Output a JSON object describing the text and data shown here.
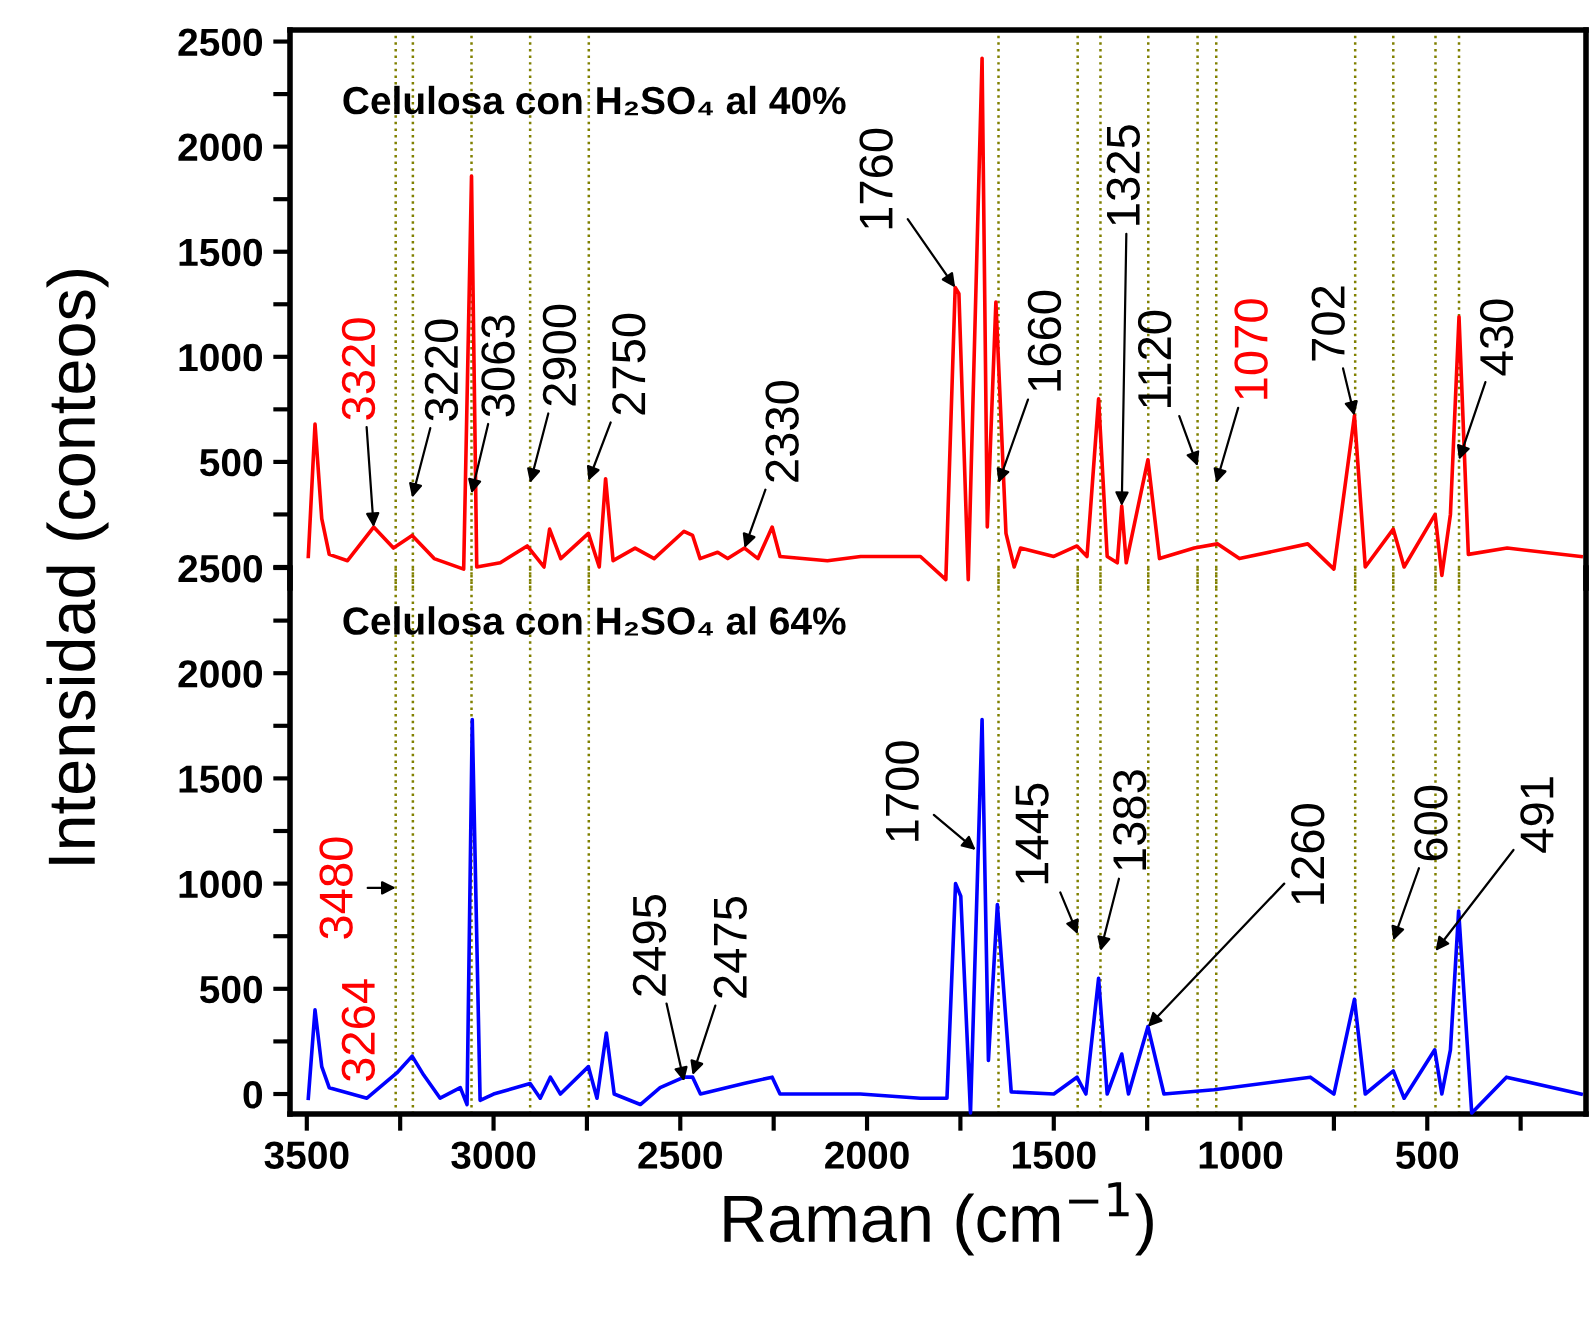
{
  "chart_data": [
    {
      "type": "line",
      "xlim": [
        3545,
        75
      ],
      "ylim": [
        -100,
        2555
      ],
      "tick_labels": "y",
      "yticks": [
        {
          "value": 0,
          "label": null
        },
        {
          "value": 250,
          "label": null
        },
        500,
        {
          "value": 750,
          "label": null
        },
        1000,
        {
          "value": 1250,
          "label": null
        },
        1500,
        {
          "value": 1750,
          "label": null
        },
        2000,
        {
          "value": 2250,
          "label": null
        },
        2500
      ],
      "grid": false,
      "legend": false,
      "marker": "none",
      "line_style": "solid",
      "series": [
        {
          "color": "#ff0000",
          "x": [
            3496,
            3478,
            3460,
            3440,
            3391,
            3321,
            3268,
            3218,
            3159,
            3080,
            3059,
            3045,
            2982,
            2910,
            2865,
            2850,
            2820,
            2746,
            2717,
            2700,
            2680,
            2621,
            2570,
            2490,
            2467,
            2447,
            2400,
            2373,
            2328,
            2292,
            2254,
            2233,
            2106,
            2017,
            1857,
            1789,
            1764,
            1754,
            1729,
            1692,
            1678,
            1655,
            1628,
            1606,
            1589,
            1500,
            1438,
            1411,
            1380,
            1357,
            1330,
            1318,
            1306,
            1248,
            1217,
            1124,
            1062,
            1003,
            820,
            750,
            695,
            666,
            591,
            562,
            479,
            461,
            438,
            415,
            390,
            286,
            88
          ],
          "values": [
            50,
            680,
            230,
            60,
            30,
            190,
            90,
            150,
            40,
            -10,
            1860,
            0,
            20,
            100,
            0,
            180,
            40,
            160,
            0,
            420,
            30,
            90,
            40,
            170,
            150,
            40,
            70,
            40,
            90,
            40,
            190,
            50,
            30,
            50,
            50,
            -60,
            1330,
            1300,
            -60,
            2420,
            190,
            1260,
            160,
            0,
            90,
            50,
            100,
            50,
            800,
            50,
            20,
            290,
            20,
            510,
            40,
            90,
            110,
            40,
            110,
            -10,
            720,
            0,
            180,
            0,
            250,
            -40,
            250,
            1190,
            60,
            90,
            50
          ]
        }
      ],
      "ref_lines": [
        {
          "axis": "x",
          "value": 3262,
          "color": "#808000",
          "line_style": "dotted"
        },
        {
          "axis": "x",
          "value": 3216,
          "color": "#808000",
          "line_style": "dotted"
        },
        {
          "axis": "x",
          "value": 3059,
          "color": "#808000",
          "line_style": "dotted"
        },
        {
          "axis": "x",
          "value": 2902,
          "color": "#808000",
          "line_style": "dotted"
        },
        {
          "axis": "x",
          "value": 2745,
          "color": "#808000",
          "line_style": "dotted"
        },
        {
          "axis": "x",
          "value": 1648,
          "color": "#808000",
          "line_style": "dotted"
        },
        {
          "axis": "x",
          "value": 1436,
          "color": "#808000",
          "line_style": "dotted"
        },
        {
          "axis": "x",
          "value": 1375,
          "color": "#808000",
          "line_style": "dotted"
        },
        {
          "axis": "x",
          "value": 1247,
          "color": "#808000",
          "line_style": "dotted"
        },
        {
          "axis": "x",
          "value": 1115,
          "color": "#808000",
          "line_style": "dotted"
        },
        {
          "axis": "x",
          "value": 1065,
          "color": "#808000",
          "line_style": "dotted"
        },
        {
          "axis": "x",
          "value": 693,
          "color": "#808000",
          "line_style": "dotted"
        },
        {
          "axis": "x",
          "value": 591,
          "color": "#808000",
          "line_style": "dotted"
        },
        {
          "axis": "x",
          "value": 478,
          "color": "#808000",
          "line_style": "dotted"
        },
        {
          "axis": "x",
          "value": 415,
          "color": "#808000",
          "line_style": "dotted"
        }
      ],
      "annotations": [
        "Celulosa con H₂SO₄ al 40%",
        {
          "text": "3320",
          "x": 3321,
          "y": 190
        },
        {
          "text": "3220",
          "x": 3218,
          "y": 330
        },
        {
          "text": "3063",
          "x": 3059,
          "y": 350
        },
        {
          "text": "2900",
          "x": 2902,
          "y": 400
        },
        {
          "text": "2750",
          "x": 2746,
          "y": 410
        },
        {
          "text": "2330",
          "x": 2328,
          "y": 90
        },
        {
          "text": "1760",
          "x": 1764,
          "y": 1330
        },
        {
          "text": "1660",
          "x": 1648,
          "y": 400
        },
        {
          "text": "1325",
          "x": 1318,
          "y": 290
        },
        {
          "text": "1120",
          "x": 1115,
          "y": 480
        },
        {
          "text": "1070",
          "x": 1065,
          "y": 400
        },
        {
          "text": "702",
          "x": 695,
          "y": 720
        },
        {
          "text": "430",
          "x": 415,
          "y": 510
        }
      ]
    },
    {
      "type": "line",
      "xlim": [
        3545,
        75
      ],
      "ylim": [
        -95,
        2500
      ],
      "xlabel": "Raman (cm$^{−1}$)",
      "ylabel": "Intensidad (conteos)",
      "xticks": [
        3500,
        {
          "value": 3250,
          "label": null
        },
        3000,
        {
          "value": 2750,
          "label": null
        },
        2500,
        {
          "value": 2250,
          "label": null
        },
        2000,
        {
          "value": 1750,
          "label": null
        },
        1500,
        {
          "value": 1250,
          "label": null
        },
        1000,
        {
          "value": 750,
          "label": null
        },
        500,
        {
          "value": 250,
          "label": null
        }
      ],
      "yticks": [
        0,
        {
          "value": 250,
          "label": null
        },
        500,
        {
          "value": 750,
          "label": null
        },
        1000,
        {
          "value": 1250,
          "label": null
        },
        1500,
        {
          "value": 1750,
          "label": null
        },
        2000,
        {
          "value": 2250,
          "label": null
        },
        2500
      ],
      "grid": false,
      "legend": false,
      "marker": "none",
      "line_style": "solid",
      "series": [
        {
          "color": "#0000ff",
          "x": [
            3496,
            3478,
            3460,
            3440,
            3339,
            3259,
            3218,
            3187,
            3143,
            3089,
            3071,
            3057,
            3036,
            3000,
            2902,
            2875,
            2848,
            2821,
            2746,
            2723,
            2698,
            2677,
            2607,
            2554,
            2490,
            2467,
            2446,
            2330,
            2254,
            2233,
            2018,
            1857,
            1786,
            1763,
            1749,
            1723,
            1692,
            1675,
            1651,
            1614,
            1500,
            1438,
            1414,
            1380,
            1357,
            1318,
            1300,
            1248,
            1205,
            1071,
            813,
            750,
            695,
            666,
            591,
            562,
            480,
            461,
            438,
            416,
            381,
            288,
            88
          ],
          "values": [
            -20,
            400,
            130,
            30,
            -20,
            100,
            180,
            90,
            -20,
            30,
            -50,
            1780,
            -30,
            0,
            50,
            -20,
            80,
            0,
            130,
            -20,
            290,
            0,
            -50,
            30,
            80,
            80,
            0,
            50,
            80,
            0,
            0,
            -20,
            -20,
            1000,
            940,
            -90,
            1780,
            160,
            900,
            10,
            0,
            80,
            0,
            550,
            0,
            190,
            0,
            320,
            0,
            20,
            80,
            0,
            450,
            0,
            110,
            -20,
            210,
            0,
            210,
            870,
            -90,
            80,
            0
          ]
        }
      ],
      "ref_lines": [
        {
          "axis": "x",
          "value": 3262,
          "color": "#808000",
          "line_style": "dotted"
        },
        {
          "axis": "x",
          "value": 3216,
          "color": "#808000",
          "line_style": "dotted"
        },
        {
          "axis": "x",
          "value": 3059,
          "color": "#808000",
          "line_style": "dotted"
        },
        {
          "axis": "x",
          "value": 2902,
          "color": "#808000",
          "line_style": "dotted"
        },
        {
          "axis": "x",
          "value": 2745,
          "color": "#808000",
          "line_style": "dotted"
        },
        {
          "axis": "x",
          "value": 1648,
          "color": "#808000",
          "line_style": "dotted"
        },
        {
          "axis": "x",
          "value": 1436,
          "color": "#808000",
          "line_style": "dotted"
        },
        {
          "axis": "x",
          "value": 1375,
          "color": "#808000",
          "line_style": "dotted"
        },
        {
          "axis": "x",
          "value": 1247,
          "color": "#808000",
          "line_style": "dotted"
        },
        {
          "axis": "x",
          "value": 1115,
          "color": "#808000",
          "line_style": "dotted"
        },
        {
          "axis": "x",
          "value": 1065,
          "color": "#808000",
          "line_style": "dotted"
        },
        {
          "axis": "x",
          "value": 693,
          "color": "#808000",
          "line_style": "dotted"
        },
        {
          "axis": "x",
          "value": 591,
          "color": "#808000",
          "line_style": "dotted"
        },
        {
          "axis": "x",
          "value": 478,
          "color": "#808000",
          "line_style": "dotted"
        },
        {
          "axis": "x",
          "value": 415,
          "color": "#808000",
          "line_style": "dotted"
        }
      ],
      "annotations": [
        "Celulosa con H₂SO₄ al 64%",
        {
          "text": "3480",
          "x": 3262,
          "y": 980
        },
        {
          "text": "3264",
          "x": 3262,
          "y": 0
        },
        {
          "text": "2495",
          "x": 2490,
          "y": 60
        },
        {
          "text": "2475",
          "x": 2467,
          "y": 90
        },
        {
          "text": "1700",
          "x": 1709,
          "y": 1160
        },
        {
          "text": "1445",
          "x": 1436,
          "y": 760
        },
        {
          "text": "1383",
          "x": 1375,
          "y": 680
        },
        {
          "text": "1260",
          "x": 1248,
          "y": 320
        },
        {
          "text": "600",
          "x": 591,
          "y": 730
        },
        {
          "text": "491",
          "x": 478,
          "y": 680
        }
      ]
    }
  ]
}
